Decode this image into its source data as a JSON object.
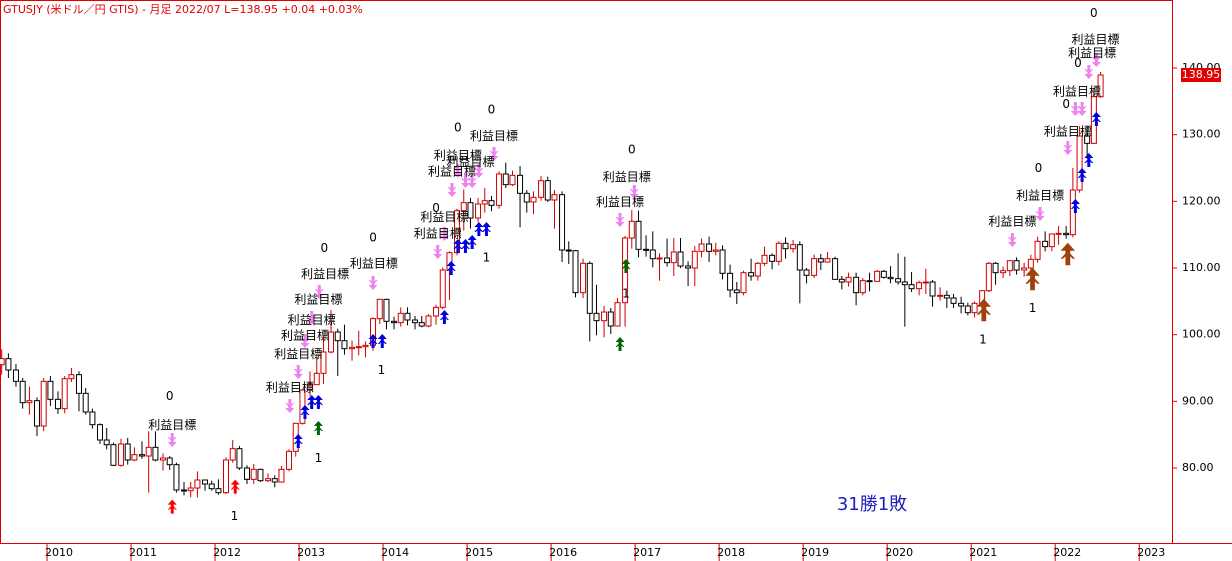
{
  "chart_data": {
    "type": "candlestick",
    "title": "GTUSJY (米ドル／円 GTIS) - 月足 2022/07 L=138.95 +0.04 +0.03%",
    "result": "31勝1敗",
    "last_price": 138.95,
    "up_color": "#d00000",
    "down_color": "#000000",
    "x": [
      2009.46,
      2009.54,
      2009.63,
      2009.71,
      2009.79,
      2009.88,
      2009.96,
      2010.04,
      2010.13,
      2010.21,
      2010.29,
      2010.38,
      2010.46,
      2010.54,
      2010.63,
      2010.71,
      2010.79,
      2010.88,
      2010.96,
      2011.04,
      2011.13,
      2011.21,
      2011.29,
      2011.38,
      2011.46,
      2011.54,
      2011.63,
      2011.71,
      2011.79,
      2011.88,
      2011.96,
      2012.04,
      2012.13,
      2012.21,
      2012.29,
      2012.38,
      2012.46,
      2012.54,
      2012.63,
      2012.71,
      2012.79,
      2012.88,
      2012.96,
      2013.04,
      2013.13,
      2013.21,
      2013.29,
      2013.38,
      2013.46,
      2013.54,
      2013.63,
      2013.71,
      2013.79,
      2013.88,
      2013.96,
      2014.04,
      2014.13,
      2014.21,
      2014.29,
      2014.38,
      2014.46,
      2014.54,
      2014.63,
      2014.71,
      2014.79,
      2014.88,
      2014.96,
      2015.04,
      2015.13,
      2015.21,
      2015.29,
      2015.38,
      2015.46,
      2015.54,
      2015.63,
      2015.71,
      2015.79,
      2015.88,
      2015.96,
      2016.04,
      2016.13,
      2016.21,
      2016.29,
      2016.38,
      2016.46,
      2016.54,
      2016.63,
      2016.71,
      2016.79,
      2016.88,
      2016.96,
      2017.04,
      2017.13,
      2017.21,
      2017.29,
      2017.38,
      2017.46,
      2017.54,
      2017.63,
      2017.71,
      2017.79,
      2017.88,
      2017.96,
      2018.04,
      2018.13,
      2018.21,
      2018.29,
      2018.38,
      2018.46,
      2018.54,
      2018.63,
      2018.71,
      2018.79,
      2018.88,
      2018.96,
      2019.04,
      2019.13,
      2019.21,
      2019.29,
      2019.38,
      2019.46,
      2019.54,
      2019.63,
      2019.71,
      2019.79,
      2019.88,
      2019.96,
      2020.04,
      2020.13,
      2020.21,
      2020.29,
      2020.38,
      2020.46,
      2020.54,
      2020.63,
      2020.71,
      2020.79,
      2020.88,
      2020.96,
      2021.04,
      2021.13,
      2021.21,
      2021.29,
      2021.38,
      2021.46,
      2021.54,
      2021.63,
      2021.71,
      2021.79,
      2021.88,
      2021.96,
      2022.04,
      2022.13,
      2022.21,
      2022.29,
      2022.38,
      2022.46,
      2022.54
    ],
    "open": [
      95.5,
      96.4,
      94.7,
      93.0,
      89.8,
      90.1,
      86.3,
      93.0,
      90.3,
      88.9,
      93.4,
      94.0,
      91.2,
      88.4,
      86.5,
      84.2,
      83.5,
      80.4,
      83.6,
      81.2,
      82.0,
      81.8,
      83.1,
      81.2,
      81.5,
      80.5,
      76.7,
      76.6,
      77.0,
      78.2,
      77.6,
      76.9,
      76.3,
      81.2,
      82.9,
      80.0,
      78.3,
      79.8,
      78.1,
      78.4,
      77.9,
      79.8,
      82.5,
      86.7,
      91.7,
      92.5,
      94.2,
      97.4,
      100.4,
      99.1,
      97.9,
      98.1,
      98.2,
      98.4,
      102.4,
      105.3,
      102.0,
      101.8,
      103.2,
      102.2,
      101.8,
      101.3,
      102.8,
      104.1,
      109.7,
      112.3,
      118.6,
      119.8,
      117.5,
      119.6,
      120.1,
      119.4,
      124.1,
      122.5,
      123.9,
      121.2,
      119.9,
      120.6,
      123.1,
      120.2,
      121.0,
      112.7,
      112.6,
      106.3,
      110.7,
      103.2,
      102.1,
      103.4,
      101.3,
      104.8,
      114.5,
      117.0,
      112.8,
      112.7,
      111.4,
      111.5,
      110.8,
      112.4,
      110.3,
      110.0,
      112.5,
      113.6,
      112.5,
      112.7,
      109.2,
      106.7,
      106.3,
      109.3,
      108.8,
      110.7,
      111.9,
      111.0,
      113.7,
      112.9,
      113.5,
      109.7,
      108.9,
      111.4,
      110.9,
      111.4,
      108.3,
      107.9,
      108.6,
      106.3,
      108.1,
      108.0,
      109.5,
      108.6,
      108.4,
      107.9,
      107.5,
      106.9,
      107.8,
      107.9,
      105.8,
      105.9,
      105.5,
      104.7,
      104.3,
      103.3,
      104.7,
      106.6,
      110.7,
      109.3,
      109.6,
      111.1,
      109.7,
      110.0,
      111.3,
      114.0,
      113.2,
      115.1,
      115.2,
      115.0,
      121.7,
      129.8,
      128.7,
      135.7
    ],
    "high": [
      97.8,
      97.2,
      95.6,
      93.5,
      92.2,
      90.6,
      93.5,
      93.8,
      91.5,
      93.8,
      95.0,
      94.5,
      92.0,
      88.9,
      86.7,
      86.0,
      83.8,
      84.4,
      84.5,
      83.1,
      84.0,
      85.5,
      85.5,
      82.2,
      81.8,
      80.8,
      77.9,
      77.9,
      79.5,
      78.2,
      78.1,
      78.3,
      81.6,
      84.2,
      83.3,
      80.4,
      80.6,
      79.9,
      79.2,
      78.9,
      80.3,
      82.8,
      86.8,
      91.8,
      94.5,
      96.7,
      99.9,
      103.7,
      100.9,
      101.5,
      99.1,
      100.6,
      99.0,
      102.6,
      105.4,
      105.4,
      102.7,
      104.1,
      104.1,
      102.8,
      102.8,
      103.1,
      104.5,
      110.1,
      112.5,
      118.9,
      121.8,
      120.5,
      120.5,
      122.0,
      120.8,
      124.5,
      125.8,
      124.6,
      125.3,
      121.7,
      121.5,
      123.8,
      123.7,
      121.7,
      121.5,
      114.0,
      112.7,
      111.4,
      111.0,
      107.5,
      104.3,
      104.0,
      105.5,
      114.8,
      118.7,
      118.6,
      114.9,
      115.5,
      112.2,
      114.4,
      114.5,
      114.5,
      111.0,
      113.3,
      114.4,
      114.7,
      113.8,
      113.4,
      110.5,
      107.9,
      109.6,
      111.4,
      110.9,
      113.2,
      112.2,
      114.0,
      114.6,
      114.2,
      114.0,
      110.0,
      112.0,
      112.1,
      112.4,
      111.7,
      108.8,
      109.3,
      109.3,
      108.5,
      109.3,
      109.7,
      109.7,
      110.3,
      112.2,
      111.7,
      109.4,
      108.1,
      109.9,
      108.2,
      107.1,
      106.6,
      106.1,
      105.7,
      104.8,
      105.0,
      106.7,
      110.9,
      110.9,
      110.2,
      111.1,
      111.6,
      110.8,
      112.0,
      114.7,
      115.5,
      115.2,
      116.3,
      116.3,
      125.0,
      131.3,
      131.3,
      137.0,
      139.4
    ],
    "low": [
      94.0,
      93.5,
      92.2,
      88.9,
      88.0,
      84.8,
      85.5,
      89.3,
      88.1,
      88.2,
      92.9,
      88.5,
      88.0,
      85.9,
      83.6,
      82.8,
      80.3,
      80.2,
      80.5,
      81.0,
      81.4,
      76.3,
      81.0,
      79.6,
      79.7,
      76.3,
      75.9,
      75.6,
      75.6,
      76.6,
      76.6,
      76.0,
      76.1,
      80.8,
      79.7,
      77.6,
      77.6,
      77.9,
      77.9,
      77.1,
      77.8,
      79.5,
      81.7,
      86.5,
      90.8,
      92.5,
      92.6,
      97.2,
      93.8,
      97.0,
      96.1,
      96.9,
      96.6,
      97.6,
      101.6,
      100.8,
      100.8,
      101.2,
      101.4,
      100.8,
      101.1,
      101.1,
      101.5,
      103.8,
      105.2,
      111.9,
      115.6,
      115.9,
      116.9,
      118.3,
      118.5,
      118.9,
      122.0,
      122.3,
      116.1,
      118.3,
      118.1,
      120.1,
      119.9,
      115.9,
      110.9,
      110.6,
      105.6,
      105.5,
      99.0,
      99.9,
      99.6,
      100.1,
      101.2,
      101.2,
      112.9,
      111.6,
      111.7,
      110.1,
      108.1,
      110.2,
      108.8,
      110.0,
      107.3,
      107.3,
      111.6,
      110.9,
      111.9,
      108.3,
      105.6,
      104.6,
      105.9,
      108.1,
      108.1,
      110.3,
      109.8,
      110.4,
      111.4,
      112.3,
      104.7,
      107.7,
      108.5,
      109.7,
      110.8,
      108.3,
      106.8,
      107.2,
      104.4,
      105.9,
      106.5,
      107.9,
      108.4,
      107.7,
      107.5,
      101.2,
      106.4,
      105.9,
      106.1,
      104.2,
      105.1,
      104.0,
      104.0,
      103.2,
      102.9,
      102.6,
      104.4,
      106.4,
      107.5,
      108.5,
      108.8,
      109.0,
      108.7,
      109.1,
      110.8,
      112.5,
      112.5,
      113.5,
      114.4,
      114.6,
      121.3,
      126.4,
      128.6,
      135.5
    ],
    "close": [
      96.4,
      94.7,
      93.0,
      89.8,
      90.1,
      86.3,
      93.0,
      90.3,
      88.9,
      93.4,
      94.0,
      91.2,
      88.4,
      86.5,
      84.2,
      83.5,
      80.4,
      83.6,
      81.2,
      82.0,
      81.8,
      83.1,
      81.2,
      81.5,
      80.5,
      76.7,
      76.6,
      77.0,
      78.2,
      77.6,
      76.9,
      76.3,
      81.2,
      82.9,
      80.0,
      78.3,
      79.8,
      78.1,
      78.4,
      77.9,
      79.8,
      82.5,
      86.7,
      91.7,
      92.5,
      94.2,
      97.4,
      100.4,
      99.1,
      97.9,
      98.1,
      98.2,
      98.4,
      102.4,
      105.3,
      102.0,
      101.8,
      103.2,
      102.2,
      101.8,
      101.3,
      102.8,
      104.1,
      109.7,
      112.3,
      118.6,
      119.8,
      117.5,
      119.6,
      120.1,
      119.4,
      124.1,
      122.5,
      123.9,
      121.2,
      119.9,
      120.6,
      123.1,
      120.2,
      121.0,
      112.7,
      112.6,
      106.3,
      110.7,
      103.2,
      102.1,
      103.4,
      101.3,
      104.8,
      114.5,
      117.0,
      112.8,
      112.7,
      111.4,
      111.5,
      110.8,
      112.4,
      110.3,
      110.0,
      112.5,
      113.6,
      112.5,
      112.7,
      109.2,
      106.7,
      106.3,
      109.3,
      108.8,
      110.7,
      111.9,
      111.0,
      113.7,
      112.9,
      113.5,
      109.7,
      108.9,
      111.4,
      110.9,
      111.4,
      108.3,
      107.9,
      108.6,
      106.3,
      108.1,
      108.0,
      109.5,
      108.6,
      108.4,
      107.9,
      107.5,
      106.9,
      107.8,
      107.9,
      105.8,
      105.9,
      105.5,
      104.7,
      104.3,
      103.3,
      104.7,
      106.6,
      110.7,
      109.3,
      109.6,
      111.1,
      109.7,
      110.0,
      111.3,
      114.0,
      113.2,
      115.1,
      115.2,
      115.0,
      121.7,
      129.8,
      128.7,
      135.7,
      138.95
    ],
    "xlim": [
      2009.44,
      2023.39
    ],
    "ylim": [
      68.75,
      150.2
    ],
    "xticks": [
      2010,
      2011,
      2012,
      2013,
      2014,
      2015,
      2016,
      2017,
      2018,
      2019,
      2020,
      2021,
      2022,
      2023
    ],
    "yticks": [
      {
        "value": 80,
        "label": "80.00"
      },
      {
        "value": 90,
        "label": "90.00"
      },
      {
        "value": 100,
        "label": "100.00"
      },
      {
        "value": 110,
        "label": "110.00"
      },
      {
        "value": 120,
        "label": "120.00"
      },
      {
        "value": 130,
        "label": "130.00"
      },
      {
        "value": 140,
        "label": "140.00"
      }
    ],
    "annotations": [
      {
        "text": "利益目標",
        "x": 2011.49,
        "y": 86.4
      },
      {
        "text": "0",
        "x": 2011.46,
        "y": 90.7
      },
      {
        "text": "1",
        "x": 2012.23,
        "y": 72.7
      },
      {
        "text": "利益目標",
        "x": 2012.89,
        "y": 92.0
      },
      {
        "text": "1",
        "x": 2013.23,
        "y": 81.4
      },
      {
        "text": "利益目標",
        "x": 2012.99,
        "y": 97.0
      },
      {
        "text": "利益目標",
        "x": 2013.07,
        "y": 99.8
      },
      {
        "text": "利益目標",
        "x": 2013.15,
        "y": 102.1
      },
      {
        "text": "利益目標",
        "x": 2013.23,
        "y": 105.2
      },
      {
        "text": "利益目標",
        "x": 2013.31,
        "y": 109.0
      },
      {
        "text": "0",
        "x": 2013.3,
        "y": 112.9
      },
      {
        "text": "利益目標",
        "x": 2013.89,
        "y": 110.6
      },
      {
        "text": "0",
        "x": 2013.88,
        "y": 114.5
      },
      {
        "text": "1",
        "x": 2013.98,
        "y": 94.6
      },
      {
        "text": "利益目標",
        "x": 2014.65,
        "y": 115.1
      },
      {
        "text": "利益目標",
        "x": 2014.73,
        "y": 117.6
      },
      {
        "text": "0",
        "x": 2014.63,
        "y": 118.9
      },
      {
        "text": "利益目標",
        "x": 2014.82,
        "y": 124.4
      },
      {
        "text": "利益目標",
        "x": 2014.89,
        "y": 126.8
      },
      {
        "text": "利益目標",
        "x": 2015.04,
        "y": 125.8
      },
      {
        "text": "利益目標",
        "x": 2015.32,
        "y": 129.7
      },
      {
        "text": "0",
        "x": 2015.29,
        "y": 133.7
      },
      {
        "text": "0",
        "x": 2014.89,
        "y": 131.0
      },
      {
        "text": "1",
        "x": 2015.23,
        "y": 111.5
      },
      {
        "text": "利益目標",
        "x": 2016.9,
        "y": 123.6
      },
      {
        "text": "0",
        "x": 2016.96,
        "y": 127.7
      },
      {
        "text": "利益目標",
        "x": 2016.82,
        "y": 119.8
      },
      {
        "text": "1",
        "x": 2016.89,
        "y": 106.1
      },
      {
        "text": "1",
        "x": 2021.14,
        "y": 99.2
      },
      {
        "text": "利益目標",
        "x": 2021.49,
        "y": 116.9
      },
      {
        "text": "利益目標",
        "x": 2021.82,
        "y": 120.8
      },
      {
        "text": "0",
        "x": 2021.8,
        "y": 124.9
      },
      {
        "text": "1",
        "x": 2021.73,
        "y": 103.9
      },
      {
        "text": "利益目標",
        "x": 2022.15,
        "y": 130.4
      },
      {
        "text": "0",
        "x": 2022.13,
        "y": 134.5
      },
      {
        "text": "利益目標",
        "x": 2022.26,
        "y": 136.4
      },
      {
        "text": "0",
        "x": 2022.27,
        "y": 140.7
      },
      {
        "text": "利益目標",
        "x": 2022.44,
        "y": 142.2
      },
      {
        "text": "利益目標",
        "x": 2022.48,
        "y": 144.2
      },
      {
        "text": "0",
        "x": 2022.46,
        "y": 148.2
      }
    ],
    "up_arrows": [
      {
        "color": "#ff0000",
        "x": 2011.49,
        "y": 74.2
      },
      {
        "color": "#ff0000",
        "x": 2012.24,
        "y": 77.2
      },
      {
        "color": "#006400",
        "x": 2013.23,
        "y": 86.0
      },
      {
        "color": "#006400",
        "x": 2016.89,
        "y": 110.3
      },
      {
        "color": "#006400",
        "x": 2016.82,
        "y": 98.6
      },
      {
        "color": "#0000e0",
        "x": 2012.99,
        "y": 84.05
      },
      {
        "color": "#0000e0",
        "x": 2013.07,
        "y": 88.4
      },
      {
        "color": "#0000e0",
        "x": 2013.15,
        "y": 89.9
      },
      {
        "color": "#0000e0",
        "x": 2013.23,
        "y": 89.9
      },
      {
        "color": "#0000e0",
        "x": 2013.88,
        "y": 99.05
      },
      {
        "color": "#0000e0",
        "x": 2013.99,
        "y": 99.05
      },
      {
        "color": "#0000e0",
        "x": 2014.73,
        "y": 102.65
      },
      {
        "color": "#0000e0",
        "x": 2014.81,
        "y": 110.0
      },
      {
        "color": "#0000e0",
        "x": 2014.89,
        "y": 113.3
      },
      {
        "color": "#0000e0",
        "x": 2014.98,
        "y": 113.3
      },
      {
        "color": "#0000e0",
        "x": 2015.06,
        "y": 113.9
      },
      {
        "color": "#0000e0",
        "x": 2015.14,
        "y": 115.85
      },
      {
        "color": "#0000e0",
        "x": 2015.23,
        "y": 115.85
      },
      {
        "color": "#0000e0",
        "x": 2022.24,
        "y": 119.3
      },
      {
        "color": "#0000e0",
        "x": 2022.32,
        "y": 123.95
      },
      {
        "color": "#0000e0",
        "x": 2022.4,
        "y": 126.2
      },
      {
        "color": "#0000e0",
        "x": 2022.49,
        "y": 132.35
      },
      {
        "color": "#a0400a",
        "x": 2021.15,
        "y": 103.7
      },
      {
        "color": "#a0400a",
        "x": 2021.73,
        "y": 108.35
      },
      {
        "color": "#a0400a",
        "x": 2022.15,
        "y": 112.1
      }
    ],
    "down_arrows": [
      {
        "color": "#ee82ee",
        "x": 2011.49,
        "y": 84.2
      },
      {
        "color": "#ee82ee",
        "x": 2012.89,
        "y": 89.3
      },
      {
        "color": "#ee82ee",
        "x": 2012.99,
        "y": 94.4
      },
      {
        "color": "#ee82ee",
        "x": 2013.07,
        "y": 99.05
      },
      {
        "color": "#ee82ee",
        "x": 2013.15,
        "y": 102.5
      },
      {
        "color": "#ee82ee",
        "x": 2013.24,
        "y": 106.4
      },
      {
        "color": "#ee82ee",
        "x": 2013.88,
        "y": 107.75
      },
      {
        "color": "#ee82ee",
        "x": 2014.65,
        "y": 112.4
      },
      {
        "color": "#ee82ee",
        "x": 2014.73,
        "y": 115.1
      },
      {
        "color": "#ee82ee",
        "x": 2014.82,
        "y": 121.7
      },
      {
        "color": "#ee82ee",
        "x": 2014.89,
        "y": 124.55
      },
      {
        "color": "#ee82ee",
        "x": 2014.98,
        "y": 123.05
      },
      {
        "color": "#ee82ee",
        "x": 2015.06,
        "y": 123.05
      },
      {
        "color": "#ee82ee",
        "x": 2015.14,
        "y": 124.55
      },
      {
        "color": "#ee82ee",
        "x": 2015.32,
        "y": 127.1
      },
      {
        "color": "#ee82ee",
        "x": 2016.82,
        "y": 117.2
      },
      {
        "color": "#ee82ee",
        "x": 2016.99,
        "y": 121.4
      },
      {
        "color": "#ee82ee",
        "x": 2021.49,
        "y": 114.2
      },
      {
        "color": "#ee82ee",
        "x": 2021.82,
        "y": 118.1
      },
      {
        "color": "#ee82ee",
        "x": 2022.15,
        "y": 128.0
      },
      {
        "color": "#ee82ee",
        "x": 2022.24,
        "y": 133.85
      },
      {
        "color": "#ee82ee",
        "x": 2022.32,
        "y": 133.85
      },
      {
        "color": "#ee82ee",
        "x": 2022.4,
        "y": 139.4
      },
      {
        "color": "#ee82ee",
        "x": 2022.49,
        "y": 141.2
      }
    ]
  }
}
